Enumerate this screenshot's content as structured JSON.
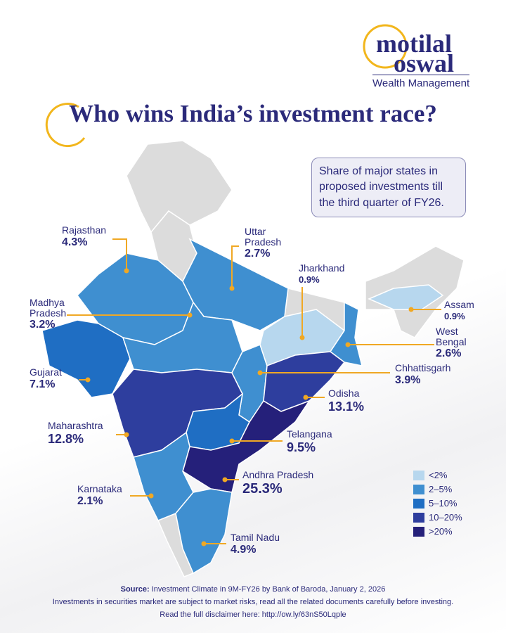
{
  "logo": {
    "line1": "motilal",
    "line2": "oswal",
    "tagline": "Wealth Management"
  },
  "title": "Who wins India’s investment race?",
  "note": "Share of major states in proposed investments till the third quarter of FY26.",
  "states": [
    {
      "name": "Rajasthan",
      "share": "4.3%"
    },
    {
      "name": "Uttar Pradesh",
      "share": "2.7%"
    },
    {
      "name": "Jharkhand",
      "share": "0.9%"
    },
    {
      "name": "Madhya Pradesh",
      "share": "3.2%"
    },
    {
      "name": "Assam",
      "share": "0.9%"
    },
    {
      "name": "West Bengal",
      "share": "2.6%"
    },
    {
      "name": "Gujarat",
      "share": "7.1%"
    },
    {
      "name": "Chhattisgarh",
      "share": "3.9%"
    },
    {
      "name": "Odisha",
      "share": "13.1%"
    },
    {
      "name": "Maharashtra",
      "share": "12.8%"
    },
    {
      "name": "Telangana",
      "share": "9.5%"
    },
    {
      "name": "Andhra Pradesh",
      "share": "25.3%"
    },
    {
      "name": "Karnataka",
      "share": "2.1%"
    },
    {
      "name": "Tamil Nadu",
      "share": "4.9%"
    }
  ],
  "legend": [
    {
      "label": "<2%",
      "color": "#b7d7ee"
    },
    {
      "label": "2–5%",
      "color": "#3f8fd0"
    },
    {
      "label": "5–10%",
      "color": "#1f6ec3"
    },
    {
      "label": "10–20%",
      "color": "#2e3e9e"
    },
    {
      "label": ">20%",
      "color": "#25207a"
    }
  ],
  "footer": {
    "source_label": "Source:",
    "source": "Investment Climate in 9M-FY26 by Bank of Baroda, January 2, 2026",
    "disclaimer": "Investments in securities market are subject to market risks, read all the related documents carefully before investing.",
    "link": "Read the full disclaimer here: http://ow.ly/63nS50Lqple"
  }
}
